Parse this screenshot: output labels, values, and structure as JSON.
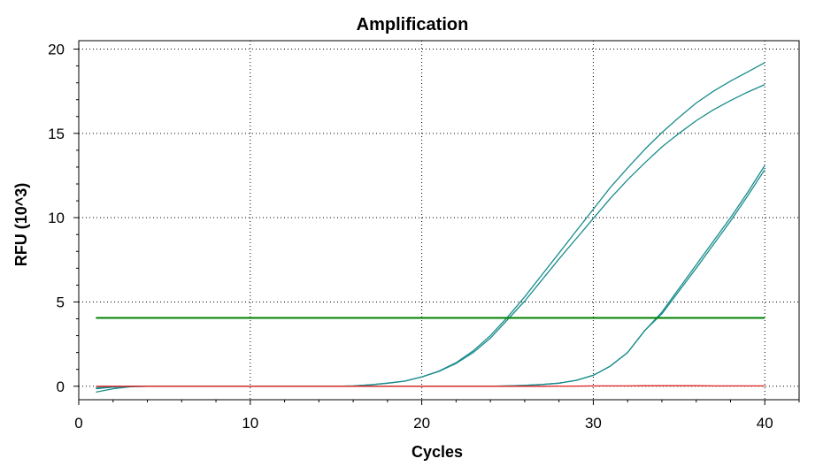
{
  "chart_data": {
    "type": "line",
    "title": "Amplification",
    "xlabel": "Cycles",
    "ylabel": "RFU (10^3)",
    "xlim": [
      0,
      42
    ],
    "ylim": [
      -0.8,
      20.5
    ],
    "x_ticks": [
      0,
      10,
      20,
      30,
      40
    ],
    "y_ticks": [
      0,
      5,
      10,
      15,
      20
    ],
    "grid": true,
    "threshold": {
      "value": 4.05,
      "x": [
        1,
        40
      ],
      "color": "#008000"
    },
    "series": [
      {
        "color": "#1a8c8c",
        "x": [
          1,
          2,
          3,
          4,
          5,
          6,
          7,
          8,
          9,
          10,
          11,
          12,
          13,
          14,
          15,
          16,
          17,
          18,
          19,
          20,
          21,
          22,
          23,
          24,
          25,
          26,
          27,
          28,
          29,
          30,
          31,
          32,
          33,
          34,
          35,
          36,
          37,
          38,
          39,
          40
        ],
        "values": [
          -0.15,
          -0.05,
          0,
          0,
          0,
          0,
          0,
          0,
          0,
          0,
          0,
          0,
          0,
          0,
          0,
          0.02,
          0.08,
          0.18,
          0.3,
          0.55,
          0.9,
          1.4,
          2.1,
          3.0,
          4.1,
          5.3,
          6.6,
          7.9,
          9.2,
          10.5,
          11.8,
          12.95,
          14.05,
          15.05,
          15.95,
          16.8,
          17.5,
          18.1,
          18.65,
          19.2
        ]
      },
      {
        "color": "#1a8c8c",
        "x": [
          1,
          2,
          3,
          4,
          5,
          6,
          7,
          8,
          9,
          10,
          11,
          12,
          13,
          14,
          15,
          16,
          17,
          18,
          19,
          20,
          21,
          22,
          23,
          24,
          25,
          26,
          27,
          28,
          29,
          30,
          31,
          32,
          33,
          34,
          35,
          36,
          37,
          38,
          39,
          40
        ],
        "values": [
          -0.35,
          -0.15,
          -0.03,
          0,
          0,
          0,
          0,
          0,
          0,
          0,
          0,
          0,
          0,
          0,
          0,
          0.02,
          0.08,
          0.18,
          0.3,
          0.55,
          0.88,
          1.35,
          2.0,
          2.85,
          3.95,
          5.05,
          6.3,
          7.55,
          8.75,
          9.95,
          11.15,
          12.25,
          13.25,
          14.2,
          15.0,
          15.75,
          16.4,
          16.95,
          17.45,
          17.9
        ]
      },
      {
        "color": "#1a8c8c",
        "x": [
          1,
          2,
          3,
          4,
          5,
          6,
          7,
          8,
          9,
          10,
          11,
          12,
          13,
          14,
          15,
          16,
          17,
          18,
          19,
          20,
          21,
          22,
          23,
          24,
          25,
          26,
          27,
          28,
          29,
          30,
          31,
          32,
          33,
          34,
          35,
          36,
          37,
          38,
          39,
          40
        ],
        "values": [
          -0.1,
          -0.05,
          0,
          0,
          0,
          0,
          0,
          0,
          0,
          0,
          0,
          0,
          0,
          0,
          0,
          0,
          0,
          0,
          0,
          0,
          0,
          0,
          0,
          0,
          0.02,
          0.05,
          0.1,
          0.18,
          0.35,
          0.65,
          1.2,
          2.0,
          3.3,
          4.4,
          5.8,
          7.2,
          8.6,
          10.0,
          11.5,
          13.1
        ]
      },
      {
        "color": "#1a8c8c",
        "x": [
          1,
          2,
          3,
          4,
          5,
          6,
          7,
          8,
          9,
          10,
          11,
          12,
          13,
          14,
          15,
          16,
          17,
          18,
          19,
          20,
          21,
          22,
          23,
          24,
          25,
          26,
          27,
          28,
          29,
          30,
          31,
          32,
          33,
          34,
          35,
          36,
          37,
          38,
          39,
          40
        ],
        "values": [
          -0.1,
          -0.05,
          0,
          0,
          0,
          0,
          0,
          0,
          0,
          0,
          0,
          0,
          0,
          0,
          0,
          0,
          0,
          0,
          0,
          0,
          0,
          0,
          0,
          0,
          0.02,
          0.05,
          0.1,
          0.18,
          0.35,
          0.65,
          1.2,
          2.0,
          3.3,
          4.3,
          5.65,
          7.0,
          8.4,
          9.8,
          11.3,
          12.85
        ]
      },
      {
        "color": "#e02020",
        "x": [
          1,
          2,
          3,
          4,
          5,
          6,
          7,
          8,
          9,
          10,
          11,
          12,
          13,
          14,
          15,
          16,
          17,
          18,
          19,
          20,
          21,
          22,
          23,
          24,
          25,
          26,
          27,
          28,
          29,
          30,
          31,
          32,
          33,
          34,
          35,
          36,
          37,
          38,
          39,
          40
        ],
        "values": [
          0,
          0,
          0,
          0,
          0,
          0,
          0,
          0,
          0,
          0,
          0,
          0,
          0,
          0,
          0,
          0,
          0,
          0,
          0,
          0,
          0,
          0,
          0,
          0,
          0,
          0,
          0,
          0.01,
          0.01,
          0.02,
          0.02,
          0.02,
          0.03,
          0.03,
          0.03,
          0.03,
          0.02,
          0.02,
          0.02,
          0.02
        ]
      }
    ]
  }
}
